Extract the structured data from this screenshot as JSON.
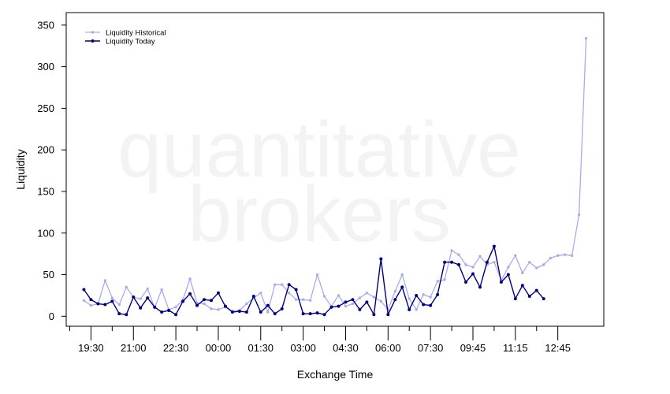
{
  "watermark": {
    "line1": "quantitative",
    "line2": "brokers"
  },
  "chart_data": {
    "type": "line",
    "xlabel": "Exchange Time",
    "ylabel": "Liquidity",
    "ylim": [
      -12,
      365
    ],
    "yticks": [
      0,
      50,
      100,
      150,
      200,
      250,
      300,
      350
    ],
    "xtick_labels": [
      "19:30",
      "21:00",
      "22:30",
      "00:00",
      "01:30",
      "03:00",
      "04:30",
      "06:00",
      "07:30",
      "09:45",
      "11:15",
      "12:45"
    ],
    "xtick_positions": [
      1,
      7,
      13,
      19,
      25,
      31,
      37,
      43,
      49,
      55,
      61,
      67
    ],
    "xlim": [
      -2.5,
      73.5
    ],
    "legend_position": "top-left",
    "colors": {
      "historical": "#aaaaee",
      "today": "#00007f"
    },
    "series": [
      {
        "name": "Liquidity Historical",
        "x": [
          0,
          1,
          2,
          3,
          4,
          5,
          6,
          7,
          8,
          9,
          10,
          11,
          12,
          13,
          14,
          15,
          16,
          17,
          18,
          19,
          20,
          21,
          22,
          23,
          24,
          25,
          26,
          27,
          28,
          29,
          30,
          31,
          32,
          33,
          34,
          35,
          36,
          37,
          38,
          39,
          40,
          41,
          42,
          43,
          44,
          45,
          46,
          47,
          48,
          49,
          50,
          51,
          52,
          53,
          54,
          55,
          56,
          57,
          58,
          59,
          60,
          61,
          62,
          63,
          64,
          65,
          66,
          67,
          68,
          69,
          70,
          71
        ],
        "values": [
          19,
          13,
          15,
          43,
          22,
          14,
          35,
          23,
          21,
          33,
          10,
          32,
          8,
          11,
          20,
          45,
          16,
          15,
          9,
          8,
          11,
          6,
          7,
          15,
          22,
          28,
          5,
          38,
          38,
          28,
          20,
          20,
          19,
          50,
          24,
          12,
          25,
          12,
          15,
          22,
          28,
          23,
          18,
          8,
          30,
          50,
          21,
          8,
          26,
          23,
          42,
          44,
          79,
          74,
          62,
          59,
          72,
          62,
          65,
          43,
          59,
          73,
          52,
          65,
          58,
          62,
          70,
          73,
          74,
          73,
          122,
          334
        ]
      },
      {
        "name": "Liquidity Today",
        "x": [
          0,
          1,
          2,
          3,
          4,
          5,
          6,
          7,
          8,
          9,
          10,
          11,
          12,
          13,
          14,
          15,
          16,
          17,
          18,
          19,
          20,
          21,
          22,
          23,
          24,
          25,
          26,
          27,
          28,
          29,
          30,
          31,
          32,
          33,
          34,
          35,
          36,
          37,
          38,
          39,
          40,
          41,
          42,
          43,
          44,
          45,
          46,
          47,
          48,
          49,
          50,
          51,
          52,
          53,
          54,
          55,
          56,
          57,
          58,
          59,
          60,
          61,
          62,
          63,
          64,
          65
        ],
        "values": [
          32,
          20,
          15,
          14,
          18,
          3,
          2,
          23,
          10,
          22,
          11,
          5,
          7,
          2,
          18,
          27,
          13,
          20,
          19,
          28,
          12,
          5,
          6,
          5,
          24,
          5,
          13,
          3,
          9,
          38,
          32,
          3,
          3,
          4,
          2,
          11,
          12,
          17,
          20,
          8,
          17,
          2,
          69,
          2,
          20,
          35,
          8,
          25,
          14,
          13,
          26,
          65,
          65,
          62,
          41,
          51,
          35,
          65,
          84,
          41,
          50,
          21,
          37,
          24,
          31,
          21
        ]
      }
    ]
  }
}
